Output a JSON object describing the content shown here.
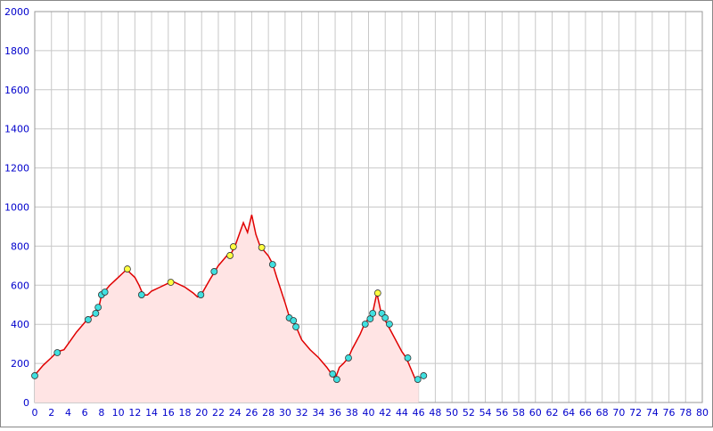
{
  "chart_data": {
    "type": "area",
    "xlim": [
      0,
      80
    ],
    "xticks": [
      0,
      2,
      4,
      6,
      8,
      10,
      12,
      14,
      16,
      18,
      20,
      22,
      24,
      26,
      28,
      30,
      32,
      34,
      36,
      38,
      40,
      42,
      44,
      46,
      48,
      50,
      52,
      54,
      56,
      58,
      60,
      62,
      64,
      66,
      68,
      70,
      72,
      74,
      76,
      78,
      80
    ],
    "ylim": [
      0,
      2000
    ],
    "yticks": [
      0,
      200,
      400,
      600,
      800,
      1000,
      1200,
      1400,
      1600,
      1800,
      2000
    ],
    "grid": true,
    "series": [
      {
        "color": "#e00000",
        "fill": "#ffe4e4",
        "x": [
          0,
          1,
          2,
          2.7,
          3.5,
          4,
          5,
          6,
          6.5,
          7.3,
          7.7,
          8,
          8.5,
          9,
          10,
          10.5,
          11,
          12,
          12.5,
          13,
          13.5,
          14,
          15,
          16,
          16.5,
          17,
          18,
          19,
          19.5,
          20,
          21,
          22,
          23,
          23.5,
          24,
          25,
          25.5,
          26,
          26.5,
          27,
          28,
          28.5,
          29,
          30,
          30.5,
          31,
          31.5,
          32,
          33,
          34,
          35,
          35.5,
          36,
          36.5,
          37,
          37.6,
          38,
          39,
          39.5,
          40,
          40.5,
          41,
          41.5,
          42,
          43,
          44,
          44.5,
          45,
          45.6,
          46
        ],
        "values": [
          140,
          190,
          230,
          260,
          270,
          300,
          360,
          410,
          430,
          460,
          490,
          550,
          575,
          600,
          640,
          660,
          680,
          640,
          600,
          550,
          550,
          570,
          590,
          610,
          620,
          610,
          590,
          560,
          540,
          555,
          630,
          700,
          750,
          760,
          800,
          920,
          870,
          960,
          860,
          800,
          750,
          710,
          640,
          510,
          440,
          410,
          370,
          320,
          270,
          230,
          180,
          150,
          120,
          180,
          200,
          230,
          270,
          350,
          400,
          430,
          460,
          560,
          460,
          420,
          340,
          260,
          230,
          180,
          120,
          125
        ]
      }
    ],
    "markers": [
      {
        "color": "#40e0e0",
        "x": [
          0,
          2.7,
          6.4,
          7.3,
          7.6,
          8.0,
          8.4,
          12.8,
          19.9,
          21.5,
          28.5,
          30.5,
          31,
          31.3,
          35.7,
          36.2,
          37.6,
          39.6,
          40.2,
          40.5,
          41.6,
          42,
          42.5,
          44.7,
          45.9,
          46.6
        ],
        "values": [
          137,
          255,
          424,
          456,
          487,
          551,
          565,
          551,
          551,
          670,
          706,
          433,
          419,
          387,
          146,
          118,
          228,
          401,
          428,
          456,
          456,
          433,
          401,
          228,
          118,
          137
        ]
      },
      {
        "color": "#ffff40",
        "x": [
          11.1,
          16.3,
          23.4,
          23.8,
          27.2,
          41.1
        ],
        "values": [
          683,
          615,
          752,
          797,
          793,
          560
        ]
      }
    ]
  }
}
